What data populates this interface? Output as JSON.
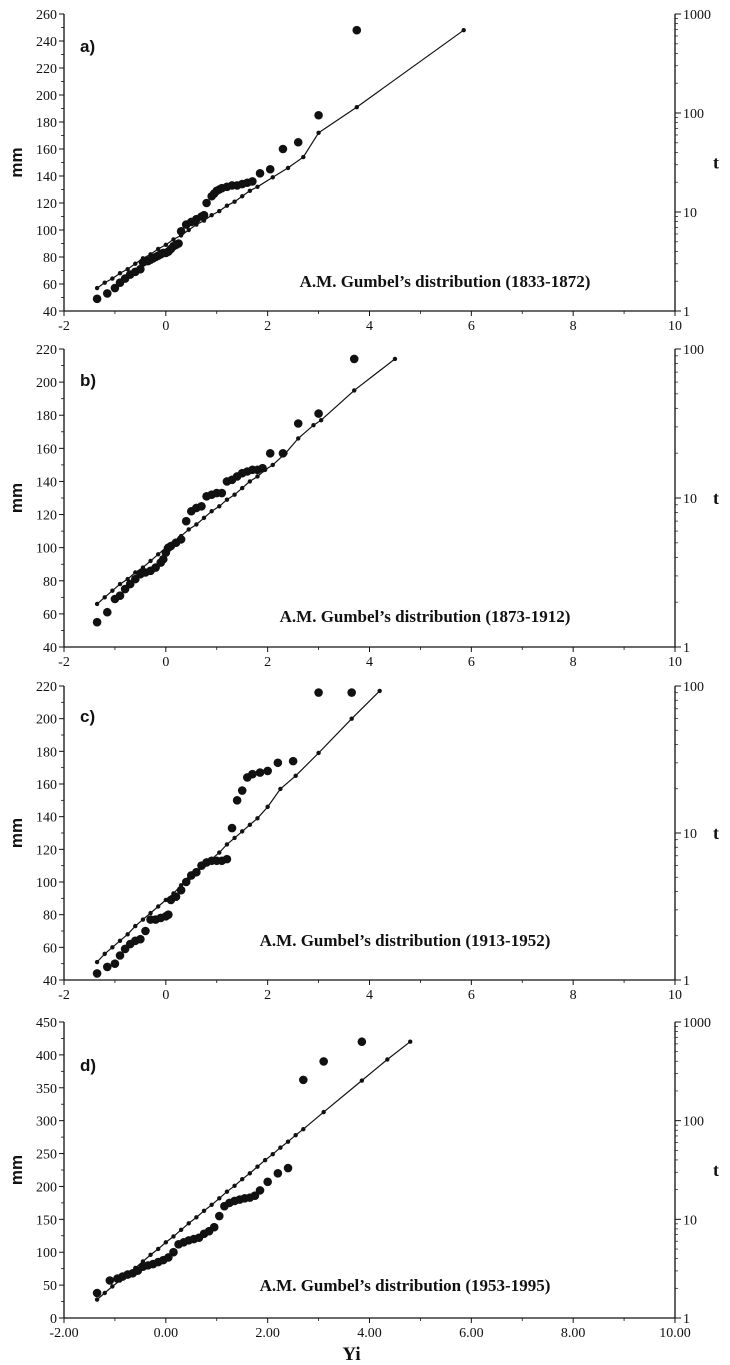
{
  "chart_data": [
    {
      "type": "scatter",
      "panel_label": "a)",
      "title": "A.M. Gumbel’s distribution (1833-1872)",
      "ylabel": "mm",
      "ylabel_right": "t",
      "xlim": [
        -2,
        10
      ],
      "ylim": [
        40,
        260
      ],
      "xticks": [
        "-2",
        "0",
        "2",
        "4",
        "6",
        "8",
        "10"
      ],
      "yticks": [
        "40",
        "60",
        "80",
        "100",
        "120",
        "140",
        "160",
        "180",
        "200",
        "220",
        "240",
        "260"
      ],
      "right_ticks": [
        "1",
        "10",
        "100",
        "1000"
      ],
      "series": [
        {
          "marker": "large-dot",
          "x": [
            -1.35,
            -1.15,
            -1.0,
            -0.9,
            -0.8,
            -0.7,
            -0.6,
            -0.5,
            -0.45,
            -0.4,
            -0.35,
            -0.3,
            -0.25,
            -0.2,
            -0.15,
            -0.1,
            -0.05,
            0.0,
            0.05,
            0.1,
            0.15,
            0.2,
            0.25,
            0.3,
            0.4,
            0.5,
            0.6,
            0.7,
            0.75,
            0.8,
            0.9,
            0.95,
            1.0,
            1.05,
            1.1,
            1.2,
            1.3,
            1.4,
            1.5,
            1.6,
            1.7,
            1.85,
            2.05,
            2.3,
            2.6,
            3.0,
            3.75
          ],
          "y": [
            49,
            53,
            57,
            61,
            64,
            67,
            69,
            71,
            76,
            77,
            77,
            78,
            79,
            80,
            81,
            82,
            83,
            83,
            84,
            86,
            88,
            89,
            90,
            99,
            104,
            106,
            108,
            110,
            111,
            120,
            125,
            127,
            129,
            130,
            131,
            132,
            133,
            133,
            134,
            135,
            136,
            142,
            145,
            160,
            165,
            185,
            248
          ]
        },
        {
          "marker": "small-dot-line",
          "x": [
            -1.35,
            -1.2,
            -1.05,
            -0.9,
            -0.75,
            -0.6,
            -0.45,
            -0.3,
            -0.15,
            0.0,
            0.15,
            0.3,
            0.45,
            0.6,
            0.75,
            0.9,
            1.05,
            1.2,
            1.35,
            1.5,
            1.65,
            1.8,
            2.1,
            2.4,
            2.7,
            3.0,
            3.75,
            5.85
          ],
          "y": [
            57,
            61,
            64,
            68,
            71,
            75,
            79,
            82,
            86,
            89,
            93,
            96,
            100,
            104,
            107,
            111,
            114,
            118,
            121,
            125,
            129,
            132,
            139,
            146,
            154,
            172,
            191,
            248
          ]
        }
      ]
    },
    {
      "type": "scatter",
      "panel_label": "b)",
      "title": "A.M. Gumbel’s distribution (1873-1912)",
      "ylabel": "mm",
      "ylabel_right": "t",
      "xlim": [
        -2,
        10
      ],
      "ylim": [
        40,
        220
      ],
      "xticks": [
        "-2",
        "0",
        "2",
        "4",
        "6",
        "8",
        "10"
      ],
      "yticks": [
        "40",
        "60",
        "80",
        "100",
        "120",
        "140",
        "160",
        "180",
        "200",
        "220"
      ],
      "right_ticks": [
        "1",
        "10",
        "100"
      ],
      "series": [
        {
          "marker": "large-dot",
          "x": [
            -1.35,
            -1.15,
            -1.0,
            -0.9,
            -0.8,
            -0.7,
            -0.6,
            -0.5,
            -0.45,
            -0.4,
            -0.3,
            -0.2,
            -0.1,
            -0.05,
            0.0,
            0.05,
            0.1,
            0.2,
            0.3,
            0.4,
            0.5,
            0.6,
            0.7,
            0.8,
            0.9,
            1.0,
            1.1,
            1.2,
            1.3,
            1.4,
            1.5,
            1.6,
            1.7,
            1.8,
            1.9,
            2.05,
            2.3,
            2.6,
            3.0,
            3.7
          ],
          "y": [
            55,
            61,
            69,
            71,
            75,
            78,
            81,
            84,
            85,
            85,
            86,
            88,
            91,
            93,
            97,
            100,
            101,
            103,
            105,
            116,
            122,
            124,
            125,
            131,
            132,
            133,
            133,
            140,
            141,
            143,
            145,
            146,
            147,
            147,
            148,
            157,
            157,
            175,
            181,
            214
          ]
        },
        {
          "marker": "small-dot-line",
          "x": [
            -1.35,
            -1.2,
            -1.05,
            -0.9,
            -0.75,
            -0.6,
            -0.45,
            -0.3,
            -0.15,
            0.0,
            0.15,
            0.3,
            0.45,
            0.6,
            0.75,
            0.9,
            1.05,
            1.2,
            1.35,
            1.5,
            1.65,
            1.8,
            1.95,
            2.1,
            2.35,
            2.6,
            2.9,
            3.05,
            3.7,
            4.5
          ],
          "y": [
            66,
            70,
            74,
            78,
            81,
            85,
            88,
            92,
            96,
            100,
            103,
            107,
            111,
            114,
            118,
            122,
            125,
            129,
            132,
            136,
            140,
            143,
            147,
            150,
            157,
            166,
            174,
            177,
            195,
            214
          ]
        }
      ]
    },
    {
      "type": "scatter",
      "panel_label": "c)",
      "title": "A.M. Gumbel’s distribution (1913-1952)",
      "ylabel": "mm",
      "ylabel_right": "t",
      "xlim": [
        -2,
        10
      ],
      "ylim": [
        40,
        220
      ],
      "xticks": [
        "-2",
        "0",
        "2",
        "4",
        "6",
        "8",
        "10"
      ],
      "yticks": [
        "40",
        "60",
        "80",
        "100",
        "120",
        "140",
        "160",
        "180",
        "200",
        "220"
      ],
      "right_ticks": [
        "1",
        "10",
        "100"
      ],
      "series": [
        {
          "marker": "large-dot",
          "x": [
            -1.35,
            -1.15,
            -1.0,
            -0.9,
            -0.8,
            -0.7,
            -0.6,
            -0.5,
            -0.4,
            -0.3,
            -0.2,
            -0.1,
            0.0,
            0.05,
            0.1,
            0.2,
            0.3,
            0.4,
            0.5,
            0.6,
            0.7,
            0.8,
            0.9,
            1.0,
            1.1,
            1.2,
            1.3,
            1.4,
            1.5,
            1.6,
            1.7,
            1.85,
            2.0,
            2.2,
            2.5,
            3.0,
            3.65
          ],
          "y": [
            44,
            48,
            50,
            55,
            59,
            62,
            64,
            65,
            70,
            77,
            77,
            78,
            79,
            80,
            89,
            91,
            95,
            100,
            104,
            106,
            110,
            112,
            113,
            113,
            113,
            114,
            133,
            150,
            156,
            164,
            166,
            167,
            168,
            173,
            174,
            216,
            216
          ]
        },
        {
          "marker": "small-dot-line",
          "x": [
            -1.35,
            -1.2,
            -1.05,
            -0.9,
            -0.75,
            -0.6,
            -0.45,
            -0.3,
            -0.15,
            0.0,
            0.15,
            0.3,
            0.45,
            0.6,
            0.75,
            0.9,
            1.05,
            1.2,
            1.35,
            1.5,
            1.65,
            1.8,
            2.0,
            2.25,
            2.55,
            3.0,
            3.65,
            4.2
          ],
          "y": [
            51,
            56,
            60,
            64,
            68,
            73,
            77,
            81,
            85,
            89,
            93,
            98,
            102,
            106,
            110,
            114,
            118,
            123,
            127,
            131,
            135,
            139,
            146,
            157,
            165,
            179,
            200,
            217
          ]
        }
      ]
    },
    {
      "type": "scatter",
      "panel_label": "d)",
      "title": "A.M. Gumbel’s distribution (1953-1995)",
      "ylabel": "mm",
      "ylabel_right": "t",
      "xlabel": "Yi",
      "xlim": [
        -2,
        10
      ],
      "ylim": [
        0,
        450
      ],
      "xticks": [
        "-2.00",
        "0.00",
        "2.00",
        "4.00",
        "6.00",
        "8.00",
        "10.00"
      ],
      "yticks": [
        "0",
        "50",
        "100",
        "150",
        "200",
        "250",
        "300",
        "350",
        "400",
        "450"
      ],
      "right_ticks": [
        "1",
        "10",
        "100",
        "1000"
      ],
      "series": [
        {
          "marker": "large-dot",
          "x": [
            -1.35,
            -1.1,
            -0.95,
            -0.85,
            -0.75,
            -0.65,
            -0.55,
            -0.45,
            -0.35,
            -0.25,
            -0.15,
            -0.05,
            0.05,
            0.15,
            0.25,
            0.35,
            0.45,
            0.55,
            0.65,
            0.75,
            0.85,
            0.95,
            1.05,
            1.15,
            1.25,
            1.35,
            1.45,
            1.55,
            1.65,
            1.75,
            1.85,
            2.0,
            2.2,
            2.4,
            2.7,
            3.1,
            3.85
          ],
          "y": [
            38,
            57,
            60,
            63,
            66,
            68,
            72,
            78,
            80,
            82,
            85,
            88,
            92,
            100,
            112,
            115,
            118,
            120,
            122,
            128,
            132,
            138,
            155,
            170,
            175,
            178,
            180,
            182,
            183,
            186,
            194,
            207,
            220,
            228,
            362,
            390,
            420
          ]
        },
        {
          "marker": "small-dot-line",
          "x": [
            -1.35,
            -1.2,
            -1.05,
            -0.9,
            -0.75,
            -0.6,
            -0.45,
            -0.3,
            -0.15,
            0.0,
            0.15,
            0.3,
            0.45,
            0.6,
            0.75,
            0.9,
            1.05,
            1.2,
            1.35,
            1.5,
            1.65,
            1.8,
            1.95,
            2.1,
            2.25,
            2.4,
            2.55,
            2.7,
            3.1,
            3.85,
            4.35,
            4.8
          ],
          "y": [
            28,
            38,
            48,
            57,
            67,
            76,
            86,
            96,
            105,
            115,
            124,
            134,
            144,
            153,
            163,
            172,
            182,
            192,
            201,
            211,
            220,
            230,
            240,
            249,
            259,
            268,
            278,
            287,
            313,
            361,
            393,
            420
          ]
        }
      ]
    }
  ]
}
